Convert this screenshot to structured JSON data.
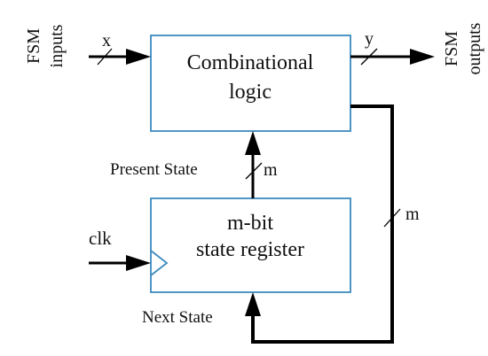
{
  "inputs_label": {
    "line1": "FSM",
    "line2": "inputs"
  },
  "outputs_label": {
    "line1": "FSM",
    "line2": "outputs"
  },
  "comb_block": {
    "line1": "Combinational",
    "line2": "logic"
  },
  "reg_block": {
    "line1": "m-bit",
    "line2": "state register"
  },
  "signals": {
    "x": "x",
    "y": "y",
    "present_state": "Present State",
    "present_width": "m",
    "feedback_width": "m",
    "next_state": "Next State",
    "clk": "clk"
  },
  "colors": {
    "block_border": "#3d8bbf",
    "wire": "#000000",
    "text": "#111111"
  }
}
